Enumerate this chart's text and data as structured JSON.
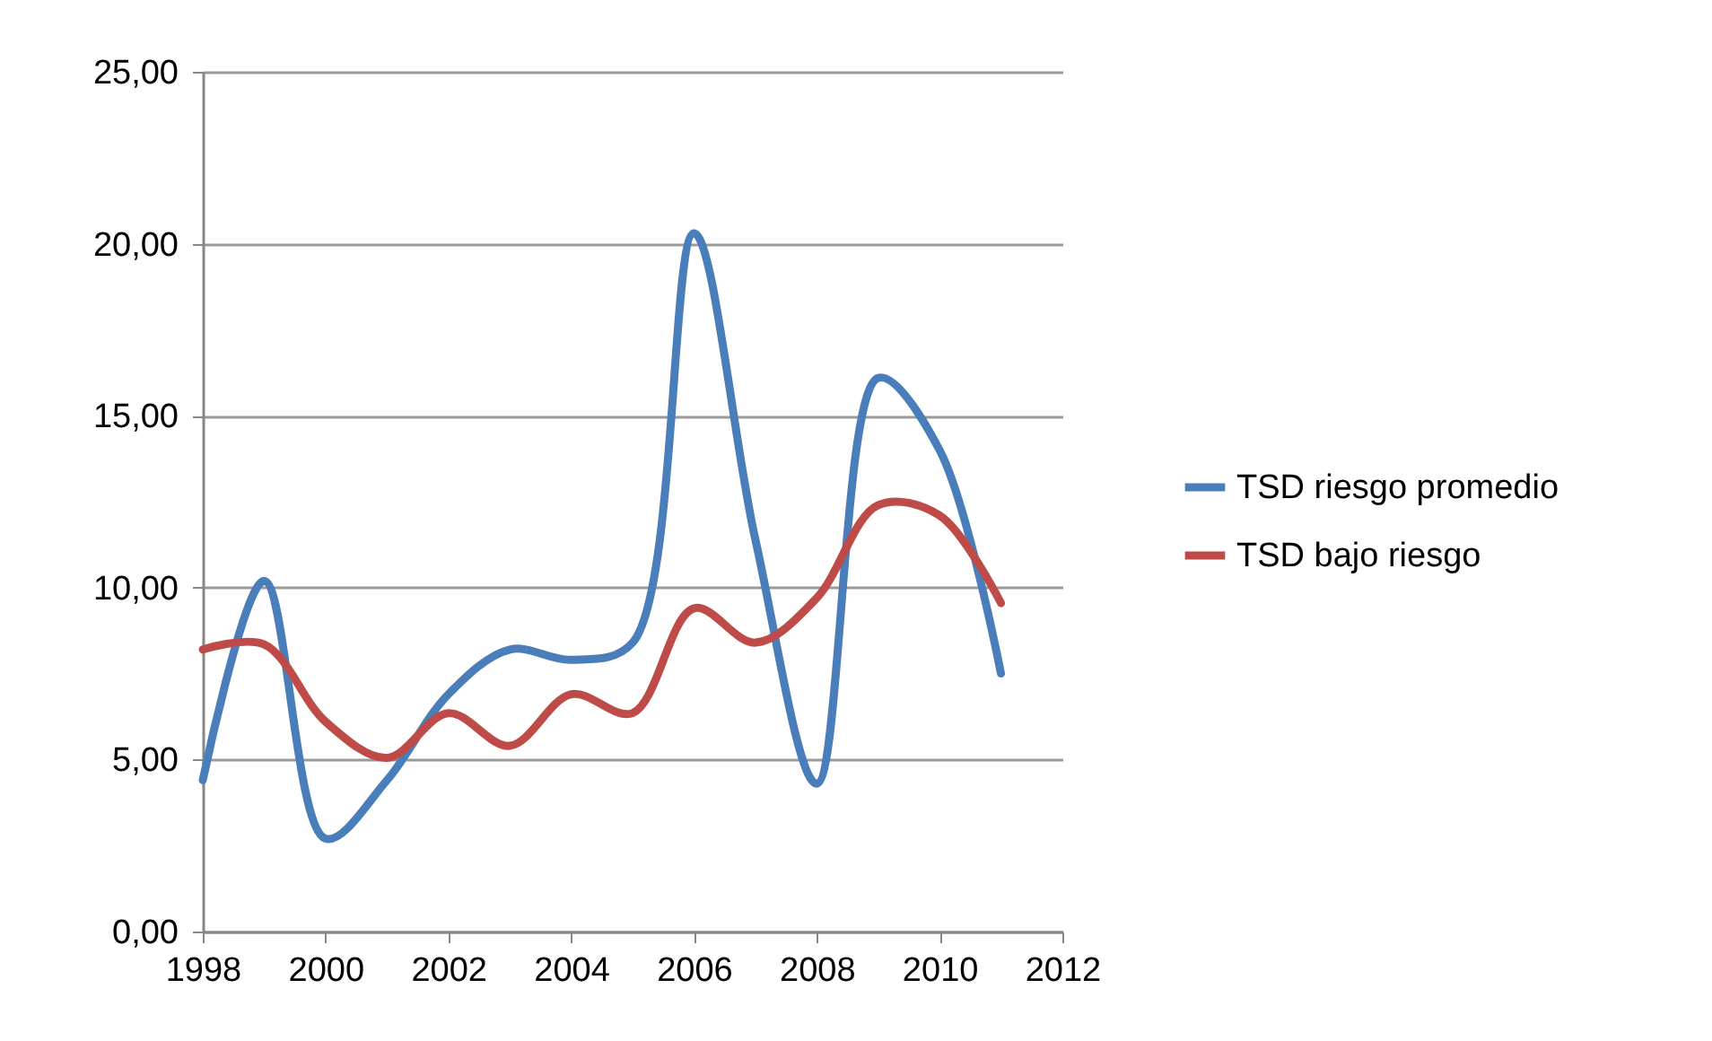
{
  "chart_data": {
    "type": "line",
    "x": [
      1998,
      1999,
      2000,
      2001,
      2002,
      2003,
      2004,
      2005,
      2006,
      2007,
      2008,
      2009,
      2010,
      2011
    ],
    "series": [
      {
        "name": "TSD riesgo promedio",
        "color": "#4a7ebb",
        "values": [
          4.4,
          10.2,
          2.7,
          4.4,
          6.9,
          8.2,
          7.9,
          8.4,
          20.3,
          11.4,
          4.3,
          16.1,
          14.0,
          7.5
        ]
      },
      {
        "name": "TSD bajo riesgo",
        "color": "#be4b48",
        "values": [
          8.2,
          8.35,
          6.1,
          5.05,
          6.35,
          5.4,
          6.9,
          6.35,
          9.4,
          8.4,
          9.7,
          12.4,
          12.1,
          9.55
        ]
      }
    ],
    "xlim": [
      1998,
      2012
    ],
    "xticks": [
      1998,
      2000,
      2002,
      2004,
      2006,
      2008,
      2010,
      2012
    ],
    "ylim": [
      0,
      25
    ],
    "yticks": [
      {
        "value": 0,
        "label": "0,00"
      },
      {
        "value": 5,
        "label": "5,00"
      },
      {
        "value": 10,
        "label": "10,00"
      },
      {
        "value": 15,
        "label": "15,00"
      },
      {
        "value": 20,
        "label": "20,00"
      },
      {
        "value": 25,
        "label": "25,00"
      }
    ],
    "grid": "y",
    "legend": "right",
    "marker": "none",
    "line_style": "solid"
  }
}
